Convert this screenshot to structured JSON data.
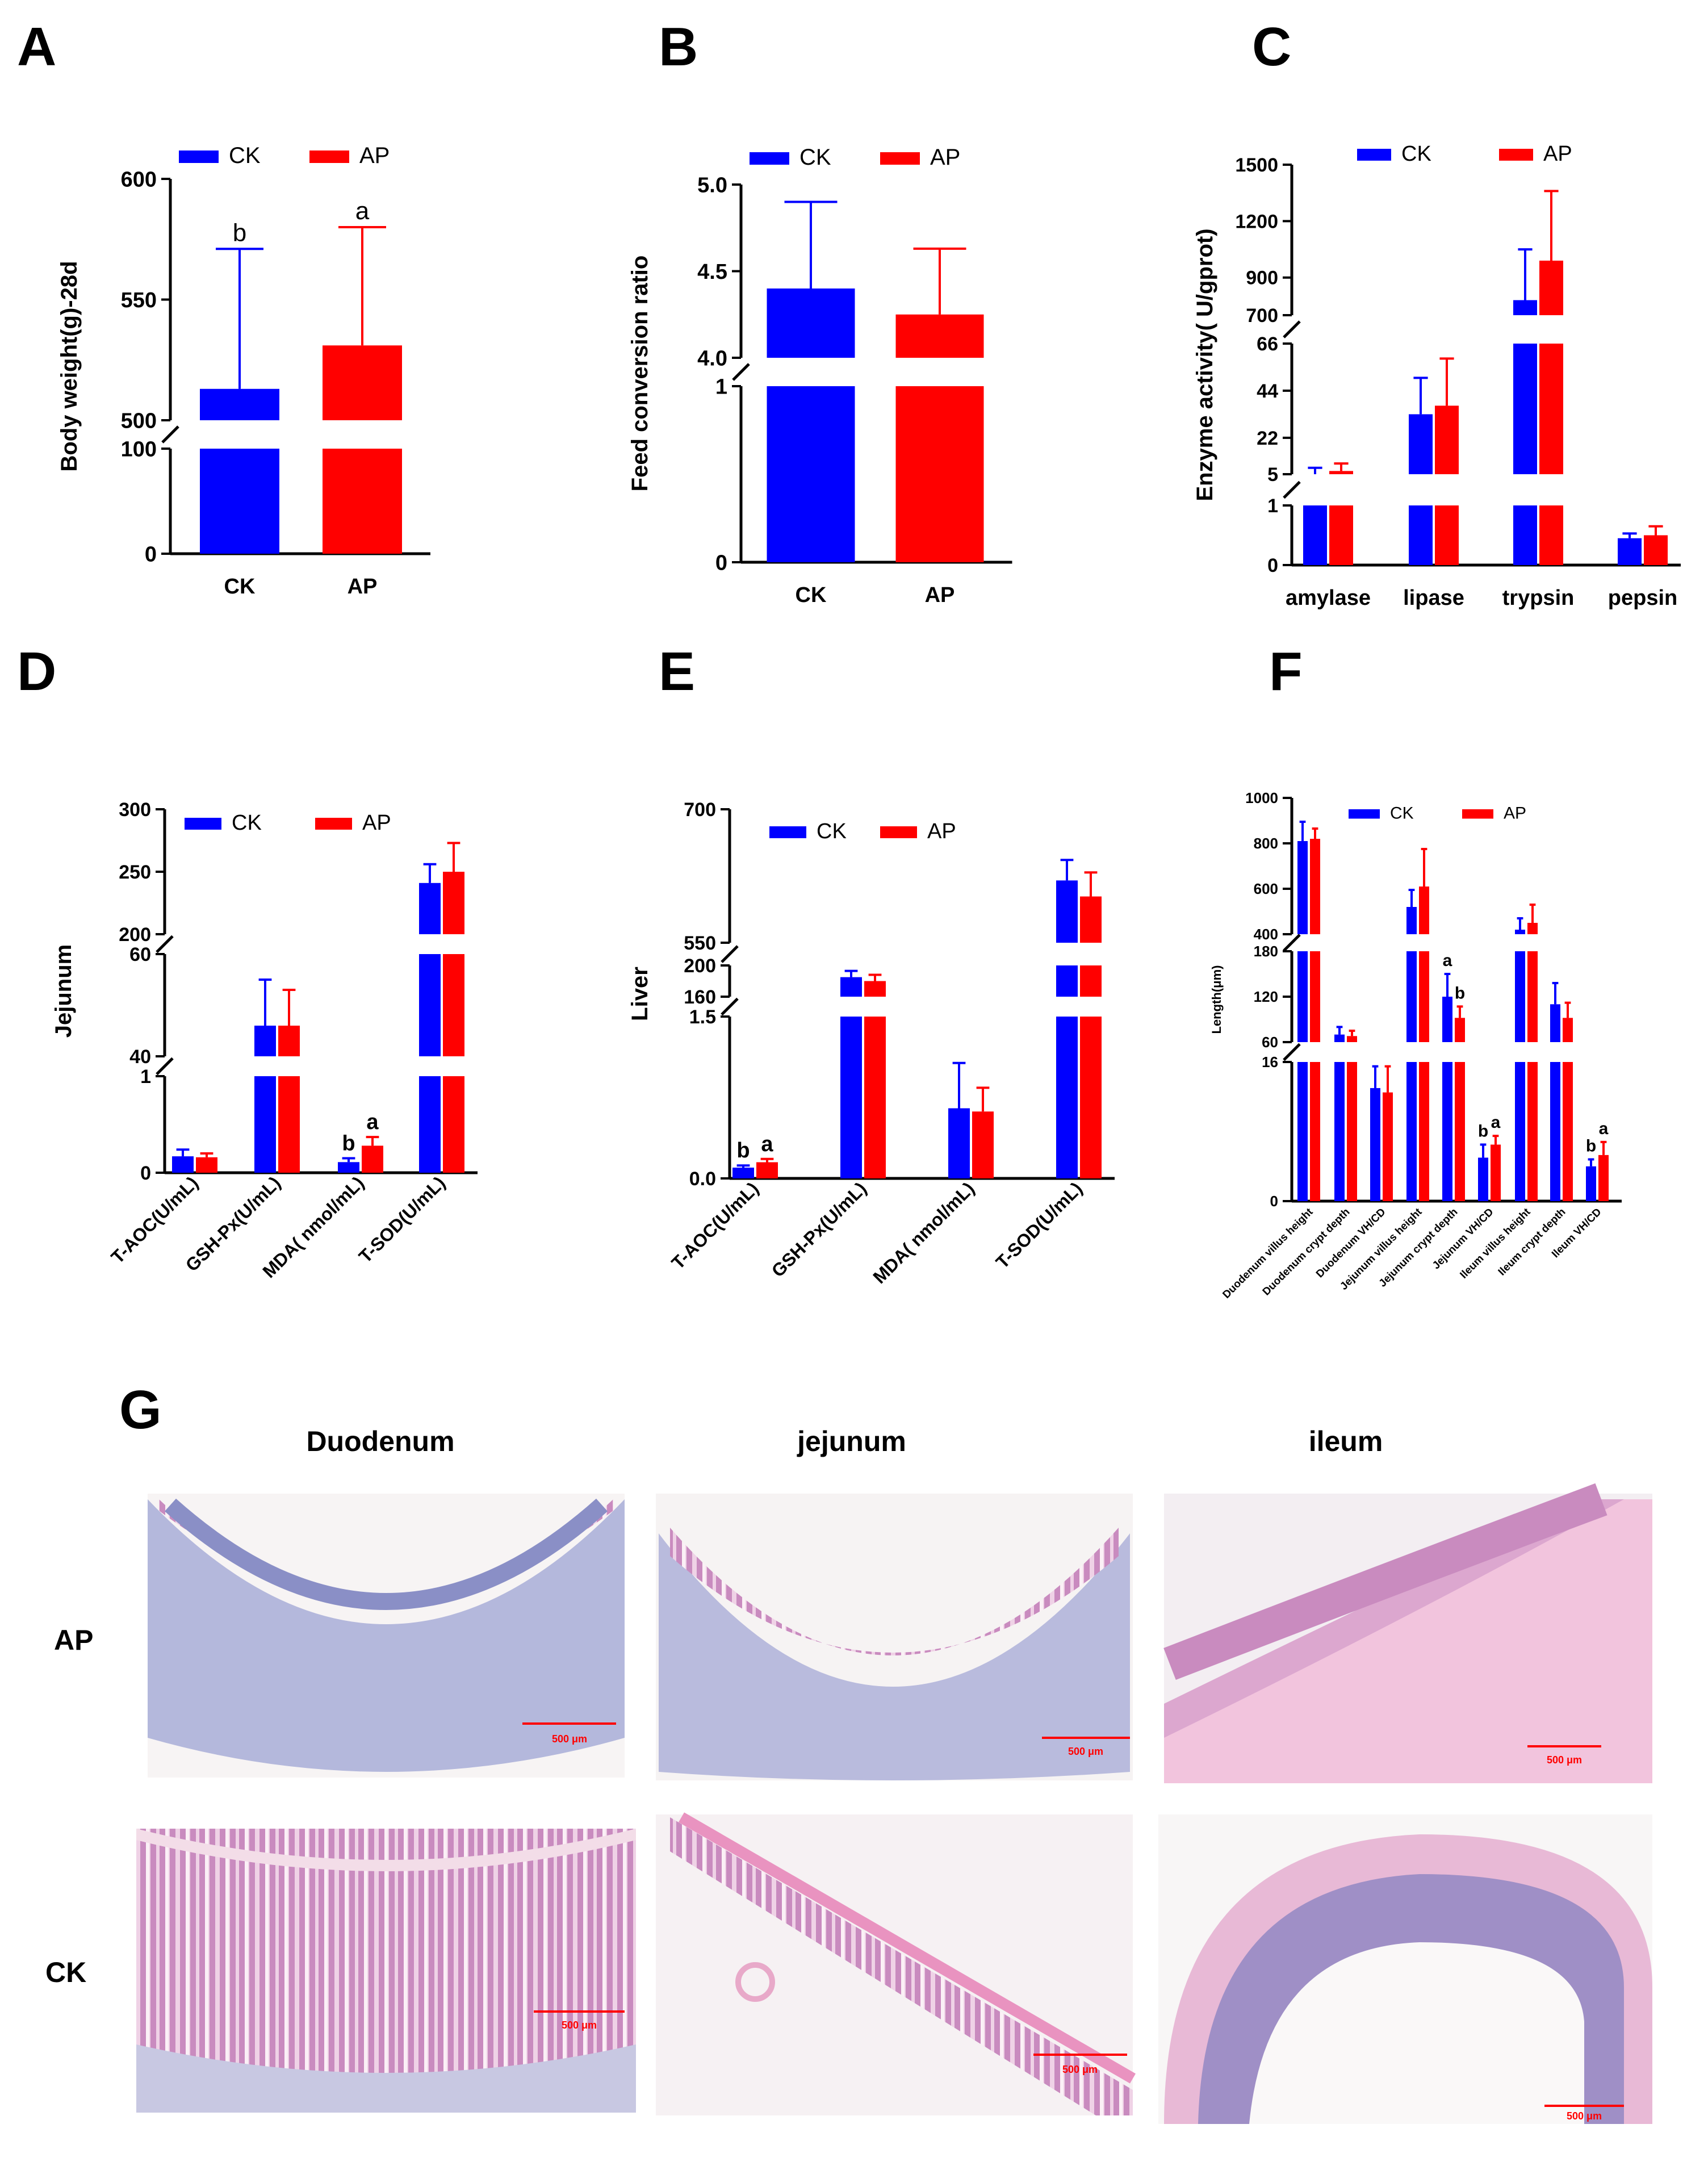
{
  "panel_letters": [
    "A",
    "B",
    "C",
    "D",
    "E",
    "F",
    "G"
  ],
  "legend": {
    "ck": "CK",
    "ap": "AP"
  },
  "colors": {
    "ck": "#0000ff",
    "ap": "#ff0000",
    "axis": "#000000"
  },
  "chart_data": [
    {
      "id": "A",
      "type": "bar",
      "title": "",
      "ylabel": "Body weight(g)-28d",
      "categories": [
        "CK",
        "AP"
      ],
      "series": [
        {
          "name": "CK",
          "values": [
            513,
            null
          ],
          "errors": [
            58,
            null
          ],
          "letters": [
            "b",
            null
          ]
        },
        {
          "name": "AP",
          "values": [
            null,
            531
          ],
          "errors": [
            null,
            49
          ],
          "letters": [
            null,
            "a"
          ]
        }
      ],
      "axis_segments": [
        {
          "range": [
            0,
            100
          ],
          "ticks": [
            0,
            100
          ]
        },
        {
          "range": [
            500,
            600
          ],
          "ticks": [
            500,
            550,
            600
          ]
        }
      ],
      "ytick_labels": [
        "0",
        "100",
        "500",
        "550",
        "600"
      ]
    },
    {
      "id": "B",
      "type": "bar",
      "ylabel": "Feed conversion ratio",
      "categories": [
        "CK",
        "AP"
      ],
      "series": [
        {
          "name": "CK",
          "values": [
            4.4,
            null
          ],
          "errors": [
            0.5,
            null
          ]
        },
        {
          "name": "AP",
          "values": [
            null,
            4.25
          ],
          "errors": [
            null,
            0.38
          ]
        }
      ],
      "axis_segments": [
        {
          "range": [
            0,
            1
          ],
          "ticks": [
            0,
            1
          ]
        },
        {
          "range": [
            4.0,
            5.0
          ],
          "ticks": [
            4.0,
            4.5,
            5.0
          ]
        }
      ],
      "ytick_labels": [
        "0",
        "1",
        "4.0",
        "4.5",
        "5.0"
      ]
    },
    {
      "id": "C",
      "type": "bar",
      "ylabel": "Enzyme activity( U/gprot)",
      "categories": [
        "amylase",
        "lipase",
        "trypsin",
        "pepsin"
      ],
      "series": [
        {
          "name": "CK",
          "values": [
            5,
            33,
            780,
            0.45
          ],
          "errors": [
            3,
            17,
            270,
            0.08
          ]
        },
        {
          "name": "AP",
          "values": [
            6.5,
            37,
            990,
            0.5
          ],
          "errors": [
            3.5,
            22,
            370,
            0.15
          ]
        }
      ],
      "axis_segments": [
        {
          "range": [
            0,
            1
          ],
          "ticks": [
            0,
            1
          ]
        },
        {
          "range": [
            5,
            66
          ],
          "ticks": [
            5,
            22,
            44,
            66
          ]
        },
        {
          "range": [
            700,
            1500
          ],
          "ticks": [
            700,
            900,
            1200,
            1500
          ]
        }
      ],
      "ytick_labels": [
        "0",
        "1",
        "5",
        "22",
        "44",
        "66",
        "700",
        "900",
        "1200",
        "1500"
      ]
    },
    {
      "id": "D",
      "type": "bar",
      "ylabel": "Jejunum",
      "categories": [
        "T-AOC(U/mL)",
        "GSH-Px(U/mL)",
        "MDA( nmol/mL)",
        "T-SOD(U/mL)"
      ],
      "series": [
        {
          "name": "CK",
          "values": [
            0.17,
            46,
            0.11,
            241
          ],
          "errors": [
            0.07,
            9,
            0.04,
            15
          ],
          "letters": [
            null,
            null,
            "b",
            null
          ]
        },
        {
          "name": "AP",
          "values": [
            0.16,
            46,
            0.28,
            250
          ],
          "errors": [
            0.04,
            7,
            0.09,
            23
          ],
          "letters": [
            null,
            null,
            "a",
            null
          ]
        }
      ],
      "axis_segments": [
        {
          "range": [
            0,
            1
          ],
          "ticks": [
            0,
            1
          ]
        },
        {
          "range": [
            40,
            60
          ],
          "ticks": [
            40,
            60
          ]
        },
        {
          "range": [
            200,
            300
          ],
          "ticks": [
            200,
            250,
            300
          ]
        }
      ],
      "ytick_labels": [
        "0",
        "1",
        "40",
        "60",
        "200",
        "250",
        "300"
      ]
    },
    {
      "id": "E",
      "type": "bar",
      "ylabel": "Liver",
      "categories": [
        "T-AOC(U/mL)",
        "GSH-Px(U/mL)",
        "MDA( nmol/mL)",
        "T-SOD(U/mL)"
      ],
      "series": [
        {
          "name": "CK",
          "values": [
            0.1,
            185,
            0.65,
            620
          ],
          "errors": [
            0.02,
            8,
            0.42,
            23
          ],
          "letters": [
            "b",
            null,
            null,
            null
          ]
        },
        {
          "name": "AP",
          "values": [
            0.15,
            180,
            0.62,
            602
          ],
          "errors": [
            0.03,
            8,
            0.22,
            27
          ],
          "letters": [
            "a",
            null,
            null,
            null
          ]
        }
      ],
      "axis_segments": [
        {
          "range": [
            0,
            1.5
          ],
          "ticks": [
            0,
            1.5
          ]
        },
        {
          "range": [
            160,
            200
          ],
          "ticks": [
            160,
            200
          ]
        },
        {
          "range": [
            550,
            700
          ],
          "ticks": [
            550,
            700
          ]
        }
      ],
      "ytick_labels": [
        "0.0",
        "1.5",
        "160",
        "200",
        "550",
        "700"
      ]
    },
    {
      "id": "F",
      "type": "bar",
      "ylabel": "Length(μm)",
      "categories": [
        "Duodenum villus height",
        "Duodenum crypt depth",
        "Duodenum VH/CD",
        "Jejunum villus height",
        "Jejunum crypt depth",
        "Jejunum VH/CD",
        "Ileum villus height",
        "Ileum crypt depth",
        "Ileum VH/CD"
      ],
      "series": [
        {
          "name": "CK",
          "values": [
            810,
            70,
            13,
            520,
            120,
            5,
            420,
            110,
            4
          ],
          "errors": [
            85,
            10,
            2.5,
            75,
            30,
            1.5,
            50,
            28,
            0.8
          ],
          "letters": [
            null,
            null,
            null,
            null,
            "a",
            "b",
            null,
            null,
            "b"
          ]
        },
        {
          "name": "AP",
          "values": [
            820,
            68,
            12.5,
            610,
            92,
            6.5,
            450,
            92,
            5.3
          ],
          "errors": [
            45,
            7,
            3,
            165,
            15,
            1,
            80,
            20,
            1.5
          ],
          "letters": [
            null,
            null,
            null,
            null,
            "b",
            "a",
            null,
            null,
            "a"
          ]
        }
      ],
      "axis_segments": [
        {
          "range": [
            0,
            16
          ],
          "ticks": [
            0,
            16
          ]
        },
        {
          "range": [
            60,
            180
          ],
          "ticks": [
            60,
            120,
            180
          ]
        },
        {
          "range": [
            400,
            1000
          ],
          "ticks": [
            400,
            600,
            800,
            1000
          ]
        }
      ],
      "ytick_labels": [
        "0",
        "16",
        "60",
        "120",
        "180",
        "400",
        "600",
        "800",
        "1000"
      ]
    }
  ],
  "histology": {
    "columns": [
      "Duodenum",
      "jejunum",
      "ileum"
    ],
    "rows": [
      "AP",
      "CK"
    ],
    "scale_bar": "500 μm"
  }
}
